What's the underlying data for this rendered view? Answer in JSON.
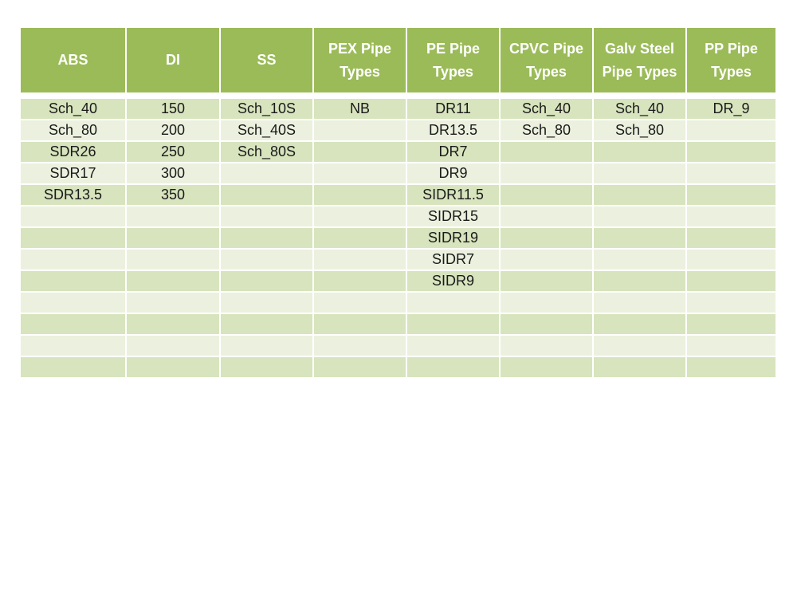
{
  "colors": {
    "header_bg": "#9bbb59",
    "band_a": "#d7e4bd",
    "band_b": "#ebf1de",
    "header_text": "#ffffff"
  },
  "table": {
    "headers": [
      "ABS",
      "DI",
      "SS",
      "PEX Pipe Types",
      "PE Pipe Types",
      "CPVC Pipe Types",
      "Galv Steel Pipe Types",
      "PP Pipe Types"
    ],
    "rows": [
      [
        "Sch_40",
        "150",
        "Sch_10S",
        "NB",
        "DR11",
        "Sch_40",
        "Sch_40",
        "DR_9"
      ],
      [
        "Sch_80",
        "200",
        "Sch_40S",
        "",
        "DR13.5",
        "Sch_80",
        "Sch_80",
        ""
      ],
      [
        "SDR26",
        "250",
        "Sch_80S",
        "",
        "DR7",
        "",
        "",
        ""
      ],
      [
        "SDR17",
        "300",
        "",
        "",
        "DR9",
        "",
        "",
        ""
      ],
      [
        "SDR13.5",
        "350",
        "",
        "",
        "SIDR11.5",
        "",
        "",
        ""
      ],
      [
        "",
        "",
        "",
        "",
        "SIDR15",
        "",
        "",
        ""
      ],
      [
        "",
        "",
        "",
        "",
        "SIDR19",
        "",
        "",
        ""
      ],
      [
        "",
        "",
        "",
        "",
        "SIDR7",
        "",
        "",
        ""
      ],
      [
        "",
        "",
        "",
        "",
        "SIDR9",
        "",
        "",
        ""
      ],
      [
        "",
        "",
        "",
        "",
        "",
        "",
        "",
        ""
      ],
      [
        "",
        "",
        "",
        "",
        "",
        "",
        "",
        ""
      ],
      [
        "",
        "",
        "",
        "",
        "",
        "",
        "",
        ""
      ],
      [
        "",
        "",
        "",
        "",
        "",
        "",
        "",
        ""
      ]
    ]
  }
}
